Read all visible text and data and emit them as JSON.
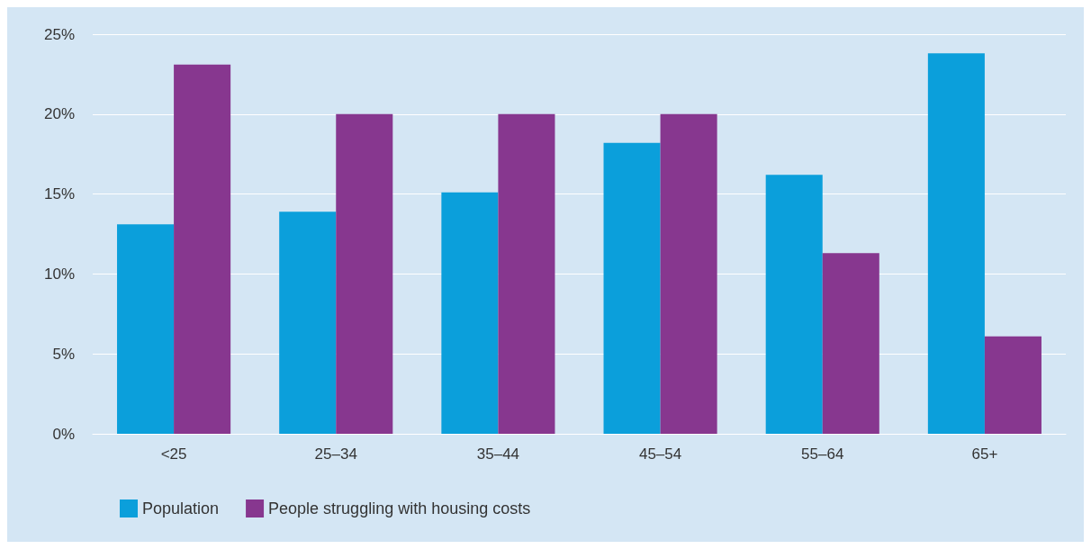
{
  "chart_data": {
    "type": "bar",
    "categories": [
      "<25",
      "25–34",
      "35–44",
      "45–54",
      "55–64",
      "65+"
    ],
    "series": [
      {
        "name": "Population",
        "color": "#0b9fdb",
        "values": [
          13.1,
          13.9,
          15.1,
          18.2,
          16.2,
          23.8
        ]
      },
      {
        "name": "People struggling with housing costs",
        "color": "#87378f",
        "values": [
          23.1,
          20.0,
          20.0,
          20.0,
          11.3,
          6.1
        ]
      }
    ],
    "ylim": [
      0,
      25
    ],
    "yticks": [
      {
        "value": 0,
        "label": "0%"
      },
      {
        "value": 5,
        "label": "5%"
      },
      {
        "value": 10,
        "label": "10%"
      },
      {
        "value": 15,
        "label": "15%"
      },
      {
        "value": 20,
        "label": "20%"
      },
      {
        "value": 25,
        "label": "25%"
      }
    ],
    "grid": "y",
    "legend": "bottom left"
  }
}
